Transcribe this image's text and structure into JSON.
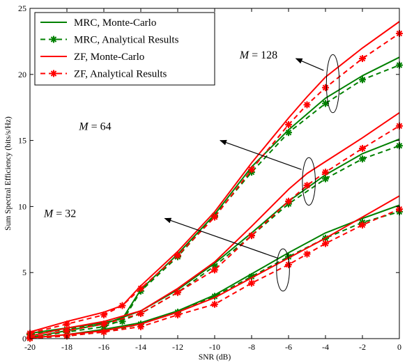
{
  "chart_data": {
    "type": "line",
    "xlabel": "SNR (dB)",
    "ylabel": "Sum Spectral Efficiency (bits/s/Hz)",
    "xlim": [
      -20,
      0
    ],
    "ylim": [
      0,
      25
    ],
    "xticks": [
      -20,
      -18,
      -16,
      -14,
      -12,
      -10,
      -8,
      -6,
      -4,
      -2,
      0
    ],
    "yticks": [
      0,
      5,
      10,
      15,
      20,
      25
    ],
    "grid": false,
    "box": true,
    "legend_position": "top-left",
    "legend": [
      {
        "label": "MRC, Monte-Carlo",
        "color": "#008000",
        "dash": "solid",
        "marker": "none"
      },
      {
        "label": "MRC, Analytical Results",
        "color": "#008000",
        "dash": "dashed",
        "marker": "asterisk"
      },
      {
        "label": "ZF, Monte-Carlo",
        "color": "#ff0000",
        "dash": "solid",
        "marker": "none"
      },
      {
        "label": "ZF, Analytical Results",
        "color": "#ff0000",
        "dash": "dashed",
        "marker": "asterisk"
      }
    ],
    "annotations": [
      {
        "label_prefix": "M",
        "label_value": "= 128",
        "text_pos": [
          -6.6,
          21.2
        ],
        "arrow_from": [
          -4.1,
          20.3
        ],
        "arrow_to": [
          -5.6,
          21.2
        ],
        "ellipse_center": [
          -3.6,
          19.3
        ],
        "ellipse_rx": 0.35,
        "ellipse_ry": 2.2
      },
      {
        "label_prefix": "M",
        "label_value": "= 64",
        "text_pos": [
          -15.6,
          15.8
        ],
        "arrow_from": [
          -5.3,
          12.8
        ],
        "arrow_to": [
          -9.7,
          15.0
        ],
        "ellipse_center": [
          -4.9,
          11.9
        ],
        "ellipse_rx": 0.35,
        "ellipse_ry": 1.8
      },
      {
        "label_prefix": "M",
        "label_value": "= 32",
        "text_pos": [
          -17.5,
          9.2
        ],
        "arrow_from": [
          -6.6,
          6.1
        ],
        "arrow_to": [
          -12.7,
          9.1
        ],
        "ellipse_center": [
          -6.3,
          5.2
        ],
        "ellipse_rx": 0.35,
        "ellipse_ry": 1.6
      }
    ],
    "series": [
      {
        "group": "M=128",
        "method": "MRC",
        "kind": "Monte-Carlo",
        "color": "#008000",
        "dash": "solid",
        "marker": false,
        "x": [
          -20,
          -18,
          -16,
          -15,
          -14,
          -12,
          -10,
          -8,
          -6,
          -4,
          -2,
          0
        ],
        "y": [
          0.4,
          0.8,
          1.2,
          1.5,
          3.7,
          6.4,
          9.4,
          13.0,
          15.8,
          18.2,
          19.9,
          21.3
        ]
      },
      {
        "group": "M=128",
        "method": "MRC",
        "kind": "Analytical Results",
        "color": "#008000",
        "dash": "dashed",
        "marker": true,
        "x": [
          -20,
          -18,
          -16,
          -15,
          -14,
          -12,
          -10,
          -8,
          -6,
          -4,
          -2,
          0
        ],
        "y": [
          0.3,
          0.7,
          1.1,
          1.3,
          3.6,
          6.2,
          9.3,
          12.6,
          15.6,
          17.8,
          19.6,
          20.7
        ]
      },
      {
        "group": "M=128",
        "method": "ZF",
        "kind": "Monte-Carlo",
        "color": "#ff0000",
        "dash": "solid",
        "marker": false,
        "x": [
          -20,
          -18,
          -16,
          -15,
          -14,
          -12,
          -10,
          -8,
          -6,
          -5,
          -4,
          -2,
          0
        ],
        "y": [
          0.5,
          1.3,
          2.0,
          2.5,
          4.0,
          6.6,
          9.6,
          13.3,
          16.7,
          18.3,
          19.8,
          22.0,
          24.0
        ]
      },
      {
        "group": "M=128",
        "method": "ZF",
        "kind": "Analytical Results",
        "color": "#ff0000",
        "dash": "dashed",
        "marker": true,
        "x": [
          -20,
          -18,
          -16,
          -15,
          -14,
          -12,
          -10,
          -8,
          -6,
          -5,
          -4,
          -2,
          0
        ],
        "y": [
          0.4,
          1.1,
          1.8,
          2.5,
          3.8,
          6.3,
          9.2,
          12.8,
          16.2,
          17.7,
          19.0,
          21.2,
          23.1
        ]
      },
      {
        "group": "M=64",
        "method": "MRC",
        "kind": "Monte-Carlo",
        "color": "#008000",
        "dash": "solid",
        "marker": false,
        "x": [
          -20,
          -18,
          -16,
          -14,
          -12,
          -10,
          -8,
          -6,
          -4,
          -2,
          0
        ],
        "y": [
          0.1,
          0.6,
          1.1,
          2.1,
          3.7,
          5.7,
          8.0,
          10.4,
          12.4,
          14.0,
          15.1
        ]
      },
      {
        "group": "M=64",
        "method": "MRC",
        "kind": "Analytical Results",
        "color": "#008000",
        "dash": "dashed",
        "marker": true,
        "x": [
          -20,
          -18,
          -16,
          -14,
          -12,
          -10,
          -8,
          -6,
          -4,
          -2,
          0
        ],
        "y": [
          0.1,
          0.5,
          0.9,
          1.9,
          3.5,
          5.5,
          7.8,
          10.2,
          12.1,
          13.6,
          14.6
        ]
      },
      {
        "group": "M=64",
        "method": "ZF",
        "kind": "Monte-Carlo",
        "color": "#ff0000",
        "dash": "solid",
        "marker": false,
        "x": [
          -20,
          -18,
          -16,
          -14,
          -12,
          -10,
          -8,
          -6,
          -5,
          -4,
          -2,
          0
        ],
        "y": [
          0.2,
          0.8,
          1.3,
          2.1,
          3.8,
          5.8,
          8.5,
          11.3,
          12.5,
          13.4,
          15.2,
          17.1
        ]
      },
      {
        "group": "M=64",
        "method": "ZF",
        "kind": "Analytical Results",
        "color": "#ff0000",
        "dash": "dashed",
        "marker": true,
        "x": [
          -20,
          -18,
          -16,
          -14,
          -12,
          -10,
          -8,
          -6,
          -5,
          -4,
          -2,
          0
        ],
        "y": [
          0.1,
          0.6,
          1.1,
          1.9,
          3.5,
          5.2,
          7.8,
          10.4,
          11.6,
          12.6,
          14.4,
          16.1
        ]
      },
      {
        "group": "M=32",
        "method": "MRC",
        "kind": "Monte-Carlo",
        "color": "#008000",
        "dash": "solid",
        "marker": false,
        "x": [
          -20,
          -18,
          -16,
          -14,
          -12,
          -10,
          -8,
          -6,
          -4,
          -2,
          0
        ],
        "y": [
          0.05,
          0.3,
          0.7,
          1.2,
          2.1,
          3.3,
          4.9,
          6.5,
          8.0,
          9.1,
          10.1
        ]
      },
      {
        "group": "M=32",
        "method": "MRC",
        "kind": "Analytical Results",
        "color": "#008000",
        "dash": "dashed",
        "marker": true,
        "x": [
          -20,
          -18,
          -16,
          -14,
          -12,
          -10,
          -8,
          -6,
          -4,
          -2,
          0
        ],
        "y": [
          0.02,
          0.2,
          0.5,
          1.1,
          2.0,
          3.2,
          4.7,
          6.2,
          7.6,
          8.8,
          9.6
        ]
      },
      {
        "group": "M=32",
        "method": "ZF",
        "kind": "Monte-Carlo",
        "color": "#ff0000",
        "dash": "solid",
        "marker": false,
        "x": [
          -20,
          -18,
          -16,
          -14,
          -12,
          -10,
          -8,
          -6,
          -4,
          -2,
          0
        ],
        "y": [
          0.05,
          0.3,
          0.6,
          1.1,
          2.0,
          3.1,
          4.6,
          6.1,
          7.6,
          9.2,
          10.8
        ]
      },
      {
        "group": "M=32",
        "method": "ZF",
        "kind": "Analytical Results",
        "color": "#ff0000",
        "dash": "dashed",
        "marker": true,
        "x": [
          -20,
          -18,
          -16,
          -14,
          -12,
          -10,
          -8,
          -6,
          -5,
          -4,
          -2,
          0
        ],
        "y": [
          0.02,
          0.2,
          0.5,
          0.9,
          1.8,
          2.6,
          4.2,
          5.6,
          6.4,
          7.2,
          8.6,
          9.8
        ]
      }
    ]
  }
}
